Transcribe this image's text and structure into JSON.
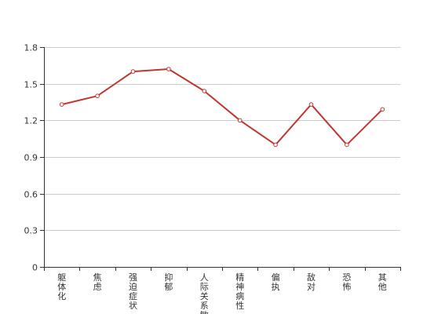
{
  "chart_data": {
    "type": "line",
    "title": "",
    "xlabel": "",
    "ylabel": "",
    "categories": [
      "躯体化",
      "焦虑",
      "强迫症状",
      "抑郁",
      "人际关系敏感",
      "精神病性",
      "偏执",
      "敌对",
      "恐怖",
      "其他"
    ],
    "series": [
      {
        "values": [
          1.33,
          1.4,
          1.6,
          1.62,
          1.44,
          1.2,
          1.0,
          1.33,
          1.0,
          1.29
        ]
      }
    ],
    "ylim": [
      0,
      1.8
    ],
    "yticks": [
      "0",
      "0.3",
      "0.6",
      "0.9",
      "1.2",
      "1.5",
      "1.8"
    ],
    "grid": true,
    "line_color": "#c23531",
    "grid_color": "#cccccc",
    "axis_color": "#333333"
  }
}
